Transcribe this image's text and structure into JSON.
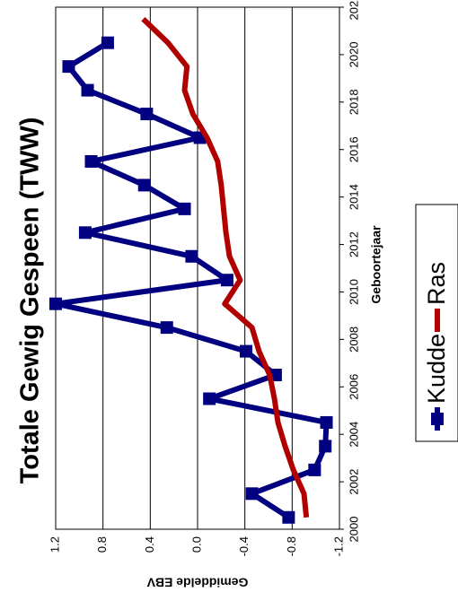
{
  "chart_data": {
    "type": "line",
    "title": "Totale Gewig Gespeen (TWW)",
    "x_label": "Geboortejaar",
    "y_label": "Gemiddelde EBV",
    "xlim": [
      2000,
      2022
    ],
    "xticks": [
      2000,
      2002,
      2004,
      2006,
      2008,
      2010,
      2012,
      2014,
      2016,
      2018,
      2020,
      2022
    ],
    "ylim": [
      -1.2,
      1.2
    ],
    "yticks": [
      1.2,
      0.8,
      0.4,
      {
        "value": 0,
        "label": "0.0"
      },
      -0.4,
      -0.8,
      -1.2
    ],
    "grid": true,
    "legend": "right",
    "series": [
      {
        "name": "Kudde",
        "color": "#000080",
        "marker": "square",
        "x": [
          2000.5,
          2001.5,
          2002.5,
          2003.5,
          2004.5,
          2005.5,
          2006.5,
          2007.5,
          2008.5,
          2009.5,
          2010.5,
          2011.5,
          2012.5,
          2013.5,
          2014.5,
          2015.5,
          2016.5,
          2017.5,
          2018.5,
          2019.5,
          2020.5
        ],
        "values": [
          -0.77,
          -0.46,
          -0.99,
          -1.08,
          -1.09,
          -0.1,
          -0.66,
          -0.41,
          0.26,
          1.2,
          -0.25,
          0.05,
          0.95,
          0.11,
          0.45,
          0.9,
          -0.02,
          0.43,
          0.93,
          1.09,
          0.76
        ]
      },
      {
        "name": "Ras",
        "color": "#b00000",
        "x": [
          2000.5,
          2001.5,
          2002.5,
          2003.5,
          2004.5,
          2005.5,
          2006.5,
          2007.5,
          2008.5,
          2009.5,
          2010.5,
          2011.5,
          2012.5,
          2013.5,
          2014.5,
          2015.5,
          2016.5,
          2017.5,
          2018.5,
          2019.5,
          2020.5,
          2021.5
        ],
        "values": [
          -0.92,
          -0.9,
          -0.81,
          -0.74,
          -0.68,
          -0.65,
          -0.61,
          -0.52,
          -0.46,
          -0.23,
          -0.36,
          -0.27,
          -0.24,
          -0.22,
          -0.2,
          -0.17,
          -0.08,
          0.04,
          0.11,
          0.09,
          0.25,
          0.46
        ]
      }
    ]
  }
}
